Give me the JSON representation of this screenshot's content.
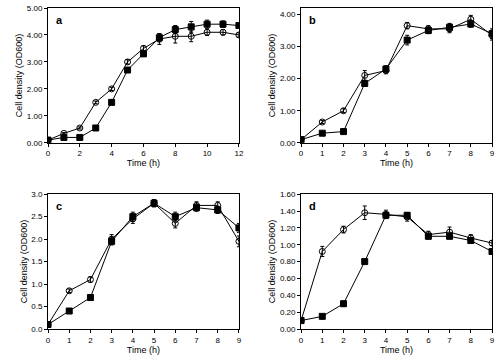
{
  "chart_data": [
    {
      "type": "line",
      "title": "a",
      "x_label": "Time (h)",
      "y_label": "Cell density (OD600)",
      "grid": false,
      "x": [
        0,
        1,
        2,
        3,
        4,
        5,
        6,
        7,
        8,
        9,
        10,
        11,
        12
      ],
      "xlim": [
        0,
        12
      ],
      "xticks": [
        0,
        2,
        4,
        6,
        8,
        10,
        12
      ],
      "ylim": [
        0,
        5
      ],
      "yticks": [
        {
          "value": 0,
          "label": "0.00"
        },
        {
          "value": 1,
          "label": "1.00"
        },
        {
          "value": 2,
          "label": "2.00"
        },
        {
          "value": 3,
          "label": "3.00"
        },
        {
          "value": 4,
          "label": "4.00"
        },
        {
          "value": 5,
          "label": "5.00"
        }
      ],
      "series": [
        {
          "color": "#000000",
          "marker": "square",
          "values": [
            0.1,
            0.2,
            0.2,
            0.55,
            1.5,
            2.7,
            3.3,
            3.9,
            4.2,
            4.3,
            4.4,
            4.4,
            4.35
          ],
          "errors": [
            0.02,
            0.03,
            0.03,
            0.05,
            0.06,
            0.08,
            0.1,
            0.15,
            0.15,
            0.2,
            0.15,
            0.12,
            0.05
          ]
        },
        {
          "color": "#000000",
          "marker": "circle-open",
          "values": [
            0.1,
            0.35,
            0.55,
            1.5,
            2.0,
            3.0,
            3.5,
            3.85,
            3.95,
            3.95,
            4.1,
            4.1,
            4.0
          ],
          "errors": [
            0.02,
            0.03,
            0.04,
            0.05,
            0.06,
            0.08,
            0.1,
            0.2,
            0.25,
            0.2,
            0.12,
            0.1,
            0.08
          ]
        }
      ]
    },
    {
      "type": "line",
      "title": "b",
      "x_label": "Time (h)",
      "y_label": "Cell density (OD600)",
      "grid": false,
      "x": [
        0,
        1,
        2,
        3,
        4,
        5,
        6,
        7,
        8,
        9
      ],
      "xlim": [
        0,
        9
      ],
      "xticks": [
        0,
        1,
        2,
        3,
        4,
        5,
        6,
        7,
        8,
        9
      ],
      "ylim": [
        0,
        4.2
      ],
      "yticks": [
        {
          "value": 0,
          "label": "0.00"
        },
        {
          "value": 1,
          "label": "1.00"
        },
        {
          "value": 2,
          "label": "2.00"
        },
        {
          "value": 3,
          "label": "3.00"
        },
        {
          "value": 4,
          "label": "4.00"
        }
      ],
      "series": [
        {
          "color": "#000000",
          "marker": "square",
          "values": [
            0.1,
            0.3,
            0.35,
            1.85,
            2.3,
            3.2,
            3.5,
            3.6,
            3.7,
            3.4
          ],
          "errors": [
            0.02,
            0.03,
            0.03,
            0.08,
            0.1,
            0.15,
            0.1,
            0.12,
            0.1,
            0.15
          ]
        },
        {
          "color": "#000000",
          "marker": "circle-open",
          "values": [
            0.1,
            0.65,
            1.0,
            2.1,
            2.25,
            3.65,
            3.55,
            3.55,
            3.85,
            3.35
          ],
          "errors": [
            0.02,
            0.05,
            0.06,
            0.15,
            0.1,
            0.1,
            0.1,
            0.12,
            0.12,
            0.15
          ]
        }
      ]
    },
    {
      "type": "line",
      "title": "c",
      "x_label": "Time (h)",
      "y_label": "Cell density (OD600)",
      "grid": false,
      "x": [
        0,
        1,
        2,
        3,
        4,
        5,
        6,
        7,
        8,
        9
      ],
      "xlim": [
        0,
        9
      ],
      "xticks": [
        0,
        1,
        2,
        3,
        4,
        5,
        6,
        7,
        8,
        9
      ],
      "ylim": [
        0,
        3
      ],
      "yticks": [
        {
          "value": 0,
          "label": "0.0"
        },
        0.5,
        {
          "value": 1,
          "label": "1.0"
        },
        1.5,
        {
          "value": 2,
          "label": "2.0"
        },
        2.5,
        {
          "value": 3,
          "label": "3.0"
        }
      ],
      "series": [
        {
          "color": "#000000",
          "marker": "square",
          "values": [
            0.1,
            0.4,
            0.7,
            1.95,
            2.5,
            2.8,
            2.5,
            2.7,
            2.65,
            2.25
          ],
          "errors": [
            0.02,
            0.03,
            0.04,
            0.08,
            0.1,
            0.08,
            0.1,
            0.08,
            0.08,
            0.1
          ]
        },
        {
          "color": "#000000",
          "marker": "circle-open",
          "values": [
            0.1,
            0.85,
            1.1,
            2.0,
            2.45,
            2.8,
            2.35,
            2.75,
            2.75,
            1.95
          ],
          "errors": [
            0.02,
            0.04,
            0.06,
            0.1,
            0.1,
            0.08,
            0.1,
            0.08,
            0.08,
            0.12
          ]
        }
      ]
    },
    {
      "type": "line",
      "title": "d",
      "x_label": "Time (h)",
      "y_label": "Cell density (OD600)",
      "grid": false,
      "x": [
        0,
        1,
        2,
        3,
        4,
        5,
        6,
        7,
        8,
        9
      ],
      "xlim": [
        0,
        9
      ],
      "xticks": [
        0,
        1,
        2,
        3,
        4,
        5,
        6,
        7,
        8,
        9
      ],
      "ylim": [
        0,
        1.6
      ],
      "yticks": [
        {
          "value": 0,
          "label": "0.00"
        },
        {
          "value": 0.2,
          "label": "0.20"
        },
        {
          "value": 0.4,
          "label": "0.40"
        },
        {
          "value": 0.6,
          "label": "0.60"
        },
        {
          "value": 0.8,
          "label": "0.80"
        },
        {
          "value": 1,
          "label": "1.00"
        },
        {
          "value": 1.2,
          "label": "1.20"
        },
        {
          "value": 1.4,
          "label": "1.40"
        },
        {
          "value": 1.6,
          "label": "1.60"
        }
      ],
      "series": [
        {
          "color": "#000000",
          "marker": "square",
          "values": [
            0.1,
            0.15,
            0.3,
            0.8,
            1.35,
            1.35,
            1.1,
            1.1,
            1.05,
            0.92
          ],
          "errors": [
            0.01,
            0.02,
            0.03,
            0.02,
            0.03,
            0.03,
            0.03,
            0.03,
            0.03,
            0.03
          ]
        },
        {
          "color": "#000000",
          "marker": "circle-open",
          "values": [
            0.1,
            0.92,
            1.18,
            1.38,
            1.36,
            1.33,
            1.12,
            1.15,
            1.08,
            1.02
          ],
          "errors": [
            0.01,
            0.06,
            0.04,
            0.08,
            0.05,
            0.05,
            0.04,
            0.06,
            0.04,
            0.03
          ]
        }
      ]
    }
  ]
}
